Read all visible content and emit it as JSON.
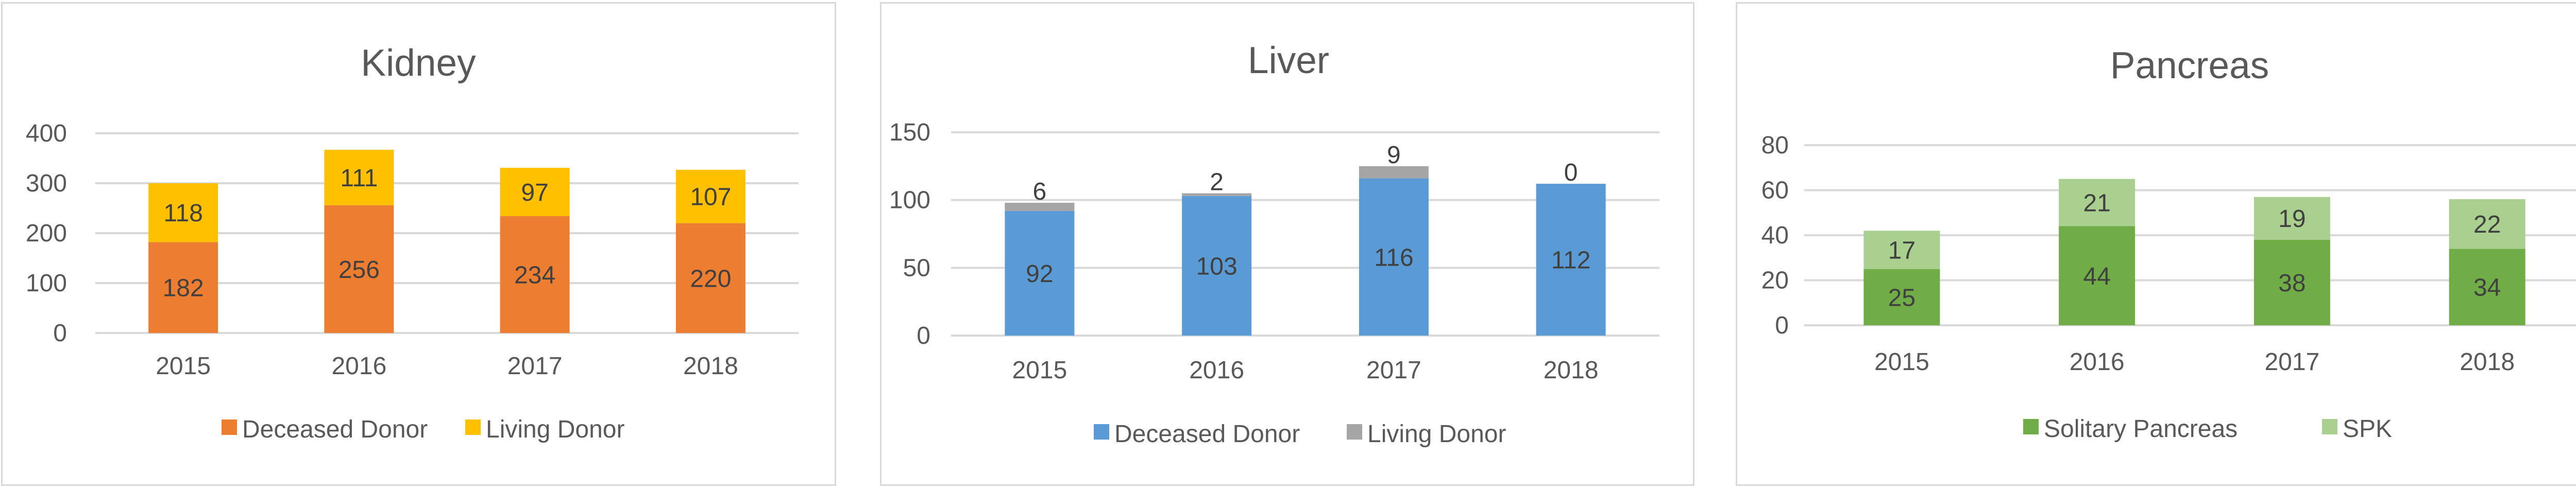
{
  "chart_data": [
    {
      "type": "bar",
      "stacked": true,
      "title": "Kidney",
      "categories": [
        "2015",
        "2016",
        "2017",
        "2018"
      ],
      "series": [
        {
          "name": "Deceased Donor",
          "values": [
            182,
            256,
            234,
            220
          ],
          "color": "#ed7d31"
        },
        {
          "name": "Living Donor",
          "values": [
            118,
            111,
            97,
            107
          ],
          "color": "#ffc000"
        }
      ],
      "ylim": [
        0,
        400
      ],
      "yticks": [
        "0",
        "100",
        "200",
        "300",
        "400"
      ],
      "grid": true,
      "legend": "bottom"
    },
    {
      "type": "bar",
      "stacked": true,
      "title": "Liver",
      "categories": [
        "2015",
        "2016",
        "2017",
        "2018"
      ],
      "series": [
        {
          "name": "Deceased Donor",
          "values": [
            92,
            103,
            116,
            112
          ],
          "color": "#5b9bd5"
        },
        {
          "name": "Living Donor",
          "values": [
            6,
            2,
            9,
            0
          ],
          "color": "#a5a5a5"
        }
      ],
      "ylim": [
        0,
        150
      ],
      "yticks": [
        "0",
        "50",
        "100",
        "150"
      ],
      "grid": true,
      "legend": "bottom"
    },
    {
      "type": "bar",
      "stacked": true,
      "title": "Pancreas",
      "categories": [
        "2015",
        "2016",
        "2017",
        "2018"
      ],
      "series": [
        {
          "name": "Solitary Pancreas",
          "values": [
            25,
            44,
            38,
            34
          ],
          "color": "#70ad47"
        },
        {
          "name": "SPK",
          "values": [
            17,
            21,
            19,
            22
          ],
          "color": "#a9d08e"
        }
      ],
      "ylim": [
        0,
        80
      ],
      "yticks": [
        "0",
        "20",
        "40",
        "60",
        "80"
      ],
      "grid": true,
      "legend": "bottom"
    }
  ]
}
